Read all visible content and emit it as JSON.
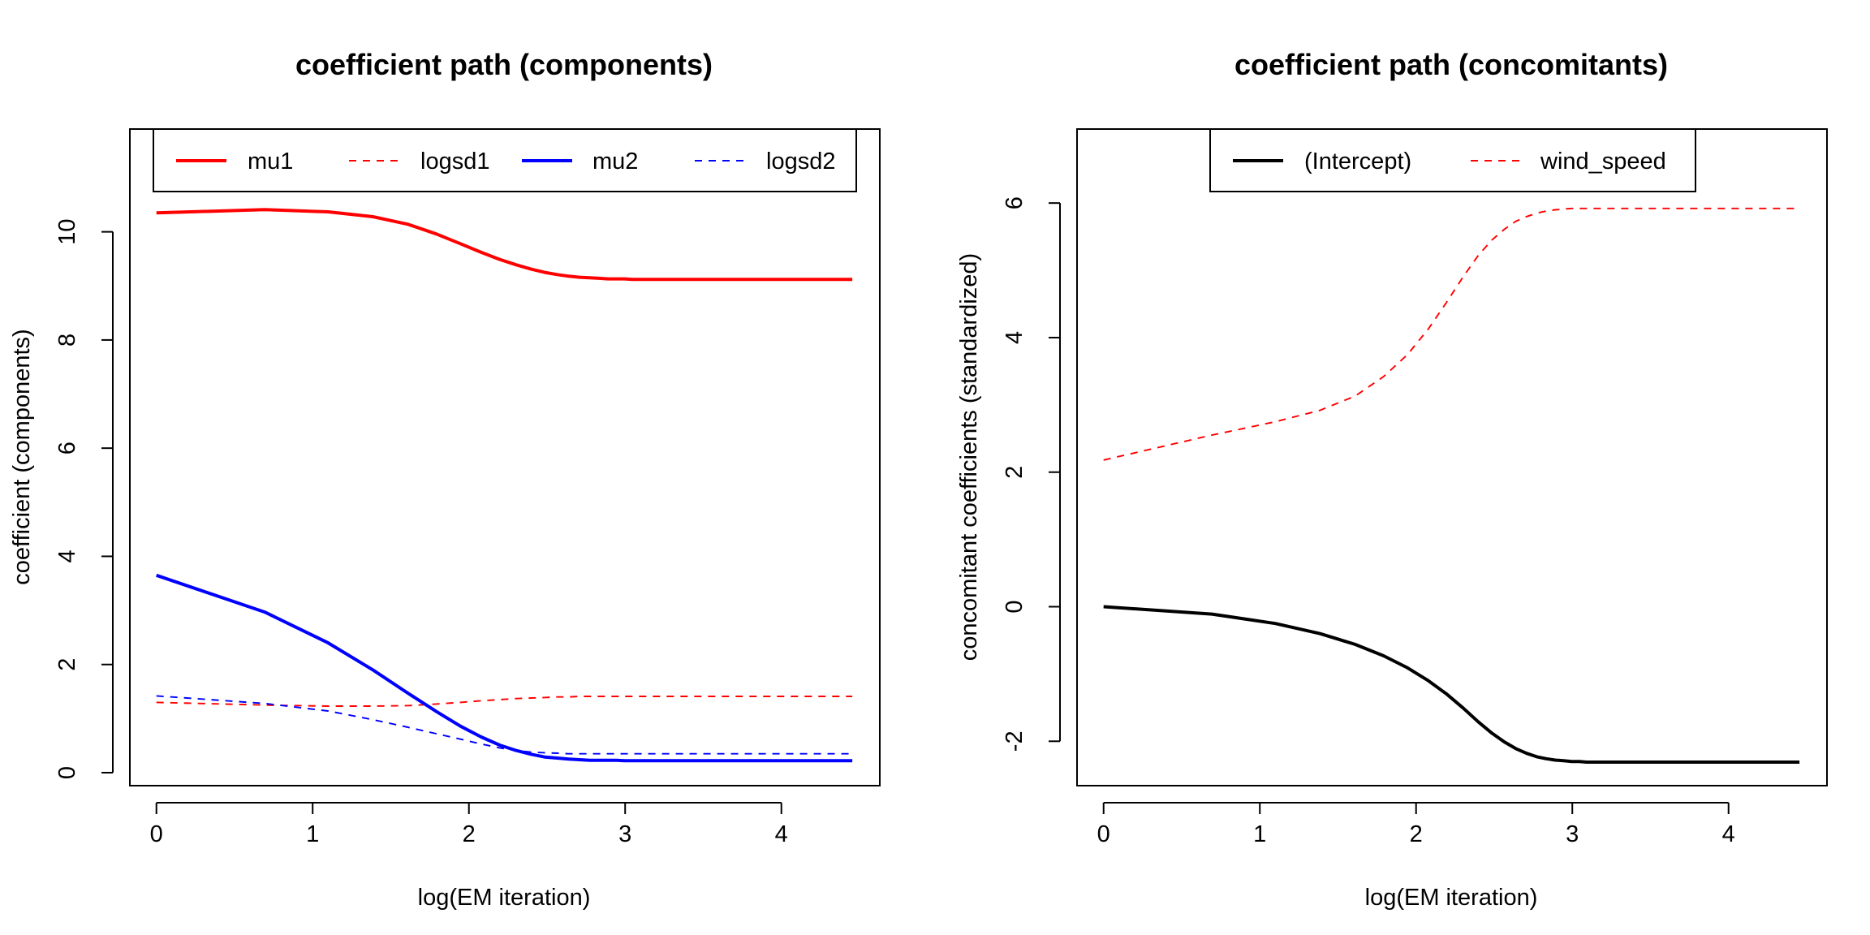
{
  "chart_data": [
    {
      "type": "line",
      "title": "coefficient path (components)",
      "xlabel": "log(EM iteration)",
      "ylabel": "coefficient (components)",
      "xlim": [
        -0.17,
        4.63
      ],
      "ylim": [
        -0.24,
        11.9
      ],
      "xticks": [
        "0",
        "1",
        "2",
        "3",
        "4"
      ],
      "yticks": [
        "0",
        "2",
        "4",
        "6",
        "8",
        "10"
      ],
      "legend": "top",
      "grid": false,
      "x": [
        0,
        0.693,
        1.099,
        1.386,
        1.609,
        1.792,
        1.946,
        2.079,
        2.197,
        2.303,
        2.398,
        2.485,
        2.565,
        2.639,
        2.708,
        2.773,
        2.833,
        2.89,
        2.944,
        2.996,
        3.045,
        3.091,
        3.178,
        3.296,
        3.401,
        3.497,
        3.689,
        3.892,
        4.094,
        4.248,
        4.454
      ],
      "series": [
        {
          "name": "mu1",
          "color": "#ff0000",
          "dash": "solid",
          "width": 2.5,
          "values": [
            10.35,
            10.41,
            10.37,
            10.28,
            10.14,
            9.96,
            9.78,
            9.62,
            9.49,
            9.39,
            9.31,
            9.25,
            9.21,
            9.18,
            9.16,
            9.15,
            9.14,
            9.13,
            9.13,
            9.13,
            9.12,
            9.12,
            9.12,
            9.12,
            9.12,
            9.12,
            9.12,
            9.12,
            9.12,
            9.12,
            9.12
          ]
        },
        {
          "name": "logsd1",
          "color": "#ff0000",
          "dash": "dashed",
          "width": 1.2,
          "values": [
            1.3,
            1.25,
            1.23,
            1.23,
            1.24,
            1.27,
            1.3,
            1.33,
            1.35,
            1.37,
            1.38,
            1.39,
            1.4,
            1.4,
            1.41,
            1.41,
            1.41,
            1.41,
            1.41,
            1.41,
            1.41,
            1.41,
            1.41,
            1.41,
            1.41,
            1.41,
            1.41,
            1.41,
            1.41,
            1.41,
            1.41
          ]
        },
        {
          "name": "mu2",
          "color": "#0000ff",
          "dash": "solid",
          "width": 2.5,
          "values": [
            3.65,
            2.97,
            2.4,
            1.9,
            1.47,
            1.13,
            0.86,
            0.66,
            0.51,
            0.41,
            0.34,
            0.29,
            0.27,
            0.25,
            0.24,
            0.23,
            0.23,
            0.23,
            0.23,
            0.22,
            0.22,
            0.22,
            0.22,
            0.22,
            0.22,
            0.22,
            0.22,
            0.22,
            0.22,
            0.22,
            0.22
          ]
        },
        {
          "name": "logsd2",
          "color": "#0000ff",
          "dash": "dashed",
          "width": 1.2,
          "values": [
            1.42,
            1.28,
            1.14,
            0.98,
            0.84,
            0.72,
            0.62,
            0.53,
            0.46,
            0.41,
            0.38,
            0.37,
            0.36,
            0.35,
            0.35,
            0.35,
            0.35,
            0.35,
            0.35,
            0.35,
            0.35,
            0.35,
            0.35,
            0.35,
            0.35,
            0.35,
            0.35,
            0.35,
            0.35,
            0.35,
            0.35
          ]
        }
      ]
    },
    {
      "type": "line",
      "title": "coefficient path (concomitants)",
      "xlabel": "log(EM iteration)",
      "ylabel": "concomitant coefficients (standardized)",
      "xlim": [
        -0.17,
        4.63
      ],
      "ylim": [
        -2.66,
        7.1
      ],
      "xticks": [
        "0",
        "1",
        "2",
        "3",
        "4"
      ],
      "yticks": [
        "-2",
        "0",
        "2",
        "4",
        "6"
      ],
      "legend": "top",
      "grid": false,
      "x": [
        0,
        0.693,
        1.099,
        1.386,
        1.609,
        1.792,
        1.946,
        2.079,
        2.197,
        2.303,
        2.398,
        2.485,
        2.565,
        2.639,
        2.708,
        2.773,
        2.833,
        2.89,
        2.944,
        2.996,
        3.045,
        3.091,
        3.178,
        3.296,
        3.401,
        3.497,
        3.689,
        3.892,
        4.094,
        4.248,
        4.454
      ],
      "series": [
        {
          "name": "(Intercept)",
          "color": "#000000",
          "dash": "solid",
          "width": 2.5,
          "values": [
            0.0,
            -0.11,
            -0.25,
            -0.4,
            -0.56,
            -0.73,
            -0.91,
            -1.1,
            -1.3,
            -1.51,
            -1.71,
            -1.88,
            -2.01,
            -2.11,
            -2.18,
            -2.23,
            -2.26,
            -2.28,
            -2.29,
            -2.3,
            -2.3,
            -2.31,
            -2.31,
            -2.31,
            -2.31,
            -2.31,
            -2.31,
            -2.31,
            -2.31,
            -2.31,
            -2.31
          ]
        },
        {
          "name": "wind_speed",
          "color": "#ff0000",
          "dash": "dashed",
          "width": 1.2,
          "values": [
            2.18,
            2.55,
            2.75,
            2.92,
            3.13,
            3.42,
            3.75,
            4.13,
            4.53,
            4.91,
            5.22,
            5.45,
            5.61,
            5.73,
            5.8,
            5.85,
            5.88,
            5.9,
            5.91,
            5.92,
            5.92,
            5.92,
            5.92,
            5.92,
            5.92,
            5.92,
            5.92,
            5.92,
            5.92,
            5.92,
            5.92
          ]
        }
      ]
    }
  ]
}
